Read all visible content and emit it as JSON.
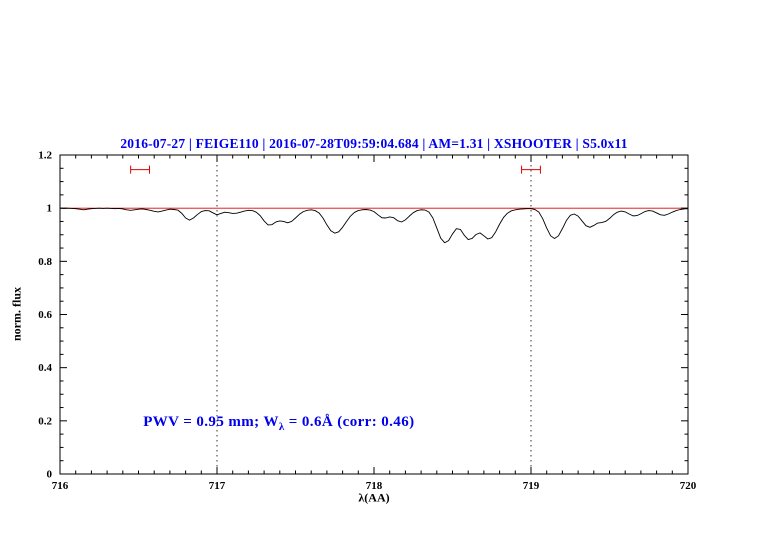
{
  "chart_data": {
    "type": "line",
    "title": "2016-07-27 | FEIGE110 | 2016-07-28T09:59:04.684 | AM=1.31 | XSHOOTER | S5.0x11",
    "xlabel": "λ(AA)",
    "ylabel": "norm. flux",
    "xlim": [
      716,
      720
    ],
    "ylim": [
      0,
      1.2
    ],
    "grid": false,
    "xticks": {
      "values": [
        716,
        717,
        718,
        719,
        720
      ],
      "labels": [
        "716",
        "717",
        "718",
        "719",
        "720"
      ]
    },
    "yticks": {
      "values": [
        0,
        0.2,
        0.4,
        0.6,
        0.8,
        1,
        1.2
      ],
      "labels": [
        "0",
        "0.2",
        "0.4",
        "0.6",
        "0.8",
        "1",
        "1.2"
      ]
    },
    "colors": {
      "spectrum": "#000000",
      "continuum": "#e00000",
      "markers": "#e00000",
      "title": "#0000ee",
      "annotation": "#0000ee",
      "frame": "#000000",
      "vline": "#000000"
    },
    "vlines": [
      {
        "x": 717,
        "color": "#000000",
        "style": "dotted"
      },
      {
        "x": 719,
        "color": "#000000",
        "style": "dotted"
      }
    ],
    "range_markers": [
      {
        "x1": 716.45,
        "x2": 716.57,
        "y": 1.145
      },
      {
        "x1": 718.94,
        "x2": 719.06,
        "y": 1.145
      }
    ],
    "annotation": {
      "prefix": "PWV = 0.95 mm; W",
      "sub": "λ",
      "suffix": " = 0.6Å (corr: 0.46)",
      "x": 716.53,
      "y": 0.185
    },
    "series": [
      {
        "name": "spectrum",
        "color": "#000000",
        "width": 0.9,
        "x": [
          716,
          716.025,
          716.05,
          716.075,
          716.1,
          716.125,
          716.15,
          716.175,
          716.2,
          716.225,
          716.25,
          716.275,
          716.3,
          716.325,
          716.35,
          716.375,
          716.4,
          716.425,
          716.45,
          716.475,
          716.5,
          716.525,
          716.55,
          716.575,
          716.6,
          716.625,
          716.65,
          716.675,
          716.7,
          716.725,
          716.75,
          716.775,
          716.8,
          716.825,
          716.85,
          716.875,
          716.9,
          716.925,
          716.95,
          716.975,
          717,
          717.025,
          717.05,
          717.075,
          717.1,
          717.125,
          717.15,
          717.175,
          717.2,
          717.225,
          717.25,
          717.275,
          717.3,
          717.325,
          717.35,
          717.375,
          717.4,
          717.425,
          717.45,
          717.475,
          717.5,
          717.525,
          717.55,
          717.575,
          717.6,
          717.625,
          717.65,
          717.675,
          717.7,
          717.725,
          717.75,
          717.775,
          717.8,
          717.825,
          717.85,
          717.875,
          717.9,
          717.925,
          717.95,
          717.975,
          718,
          718.025,
          718.05,
          718.075,
          718.1,
          718.125,
          718.15,
          718.175,
          718.2,
          718.225,
          718.25,
          718.275,
          718.3,
          718.325,
          718.35,
          718.375,
          718.4,
          718.425,
          718.45,
          718.475,
          718.5,
          718.525,
          718.55,
          718.575,
          718.6,
          718.625,
          718.65,
          718.675,
          718.7,
          718.725,
          718.75,
          718.775,
          718.8,
          718.825,
          718.85,
          718.875,
          718.9,
          718.925,
          718.95,
          718.975,
          719,
          719.025,
          719.05,
          719.075,
          719.1,
          719.125,
          719.15,
          719.175,
          719.2,
          719.225,
          719.25,
          719.275,
          719.3,
          719.325,
          719.35,
          719.375,
          719.4,
          719.425,
          719.45,
          719.475,
          719.5,
          719.525,
          719.55,
          719.575,
          719.6,
          719.625,
          719.65,
          719.675,
          719.7,
          719.725,
          719.75,
          719.775,
          719.8,
          719.825,
          719.85,
          719.875,
          719.9,
          719.925,
          719.95,
          719.975,
          720
        ],
        "y": [
          1.0,
          0.999,
          1.0,
          0.999,
          0.998,
          0.996,
          0.994,
          0.996,
          0.998,
          0.999,
          1.0,
          0.999,
          1.0,
          0.999,
          0.998,
          0.999,
          0.997,
          0.994,
          0.992,
          0.994,
          0.996,
          0.997,
          0.995,
          0.992,
          0.988,
          0.986,
          0.989,
          0.993,
          0.996,
          0.995,
          0.993,
          0.981,
          0.963,
          0.955,
          0.963,
          0.976,
          0.987,
          0.991,
          0.99,
          0.982,
          0.975,
          0.98,
          0.985,
          0.983,
          0.98,
          0.981,
          0.985,
          0.989,
          0.992,
          0.991,
          0.985,
          0.972,
          0.952,
          0.937,
          0.938,
          0.948,
          0.952,
          0.95,
          0.945,
          0.95,
          0.963,
          0.977,
          0.987,
          0.992,
          0.994,
          0.991,
          0.982,
          0.963,
          0.937,
          0.915,
          0.906,
          0.911,
          0.928,
          0.95,
          0.97,
          0.984,
          0.991,
          0.994,
          0.995,
          0.993,
          0.987,
          0.975,
          0.964,
          0.963,
          0.967,
          0.964,
          0.953,
          0.948,
          0.956,
          0.97,
          0.983,
          0.991,
          0.994,
          0.993,
          0.985,
          0.963,
          0.925,
          0.887,
          0.87,
          0.878,
          0.903,
          0.923,
          0.92,
          0.898,
          0.882,
          0.886,
          0.901,
          0.907,
          0.896,
          0.884,
          0.889,
          0.911,
          0.94,
          0.965,
          0.981,
          0.99,
          0.994,
          0.996,
          0.997,
          0.998,
          0.998,
          0.995,
          0.985,
          0.96,
          0.925,
          0.896,
          0.886,
          0.896,
          0.923,
          0.953,
          0.973,
          0.978,
          0.97,
          0.952,
          0.934,
          0.928,
          0.935,
          0.944,
          0.946,
          0.95,
          0.961,
          0.975,
          0.985,
          0.989,
          0.986,
          0.978,
          0.971,
          0.972,
          0.979,
          0.987,
          0.991,
          0.989,
          0.982,
          0.975,
          0.973,
          0.978,
          0.985,
          0.991,
          0.995,
          0.997,
          0.998
        ]
      },
      {
        "name": "continuum",
        "color": "#e00000",
        "width": 0.9,
        "x": [
          716,
          720
        ],
        "y": [
          1,
          1
        ]
      }
    ]
  }
}
